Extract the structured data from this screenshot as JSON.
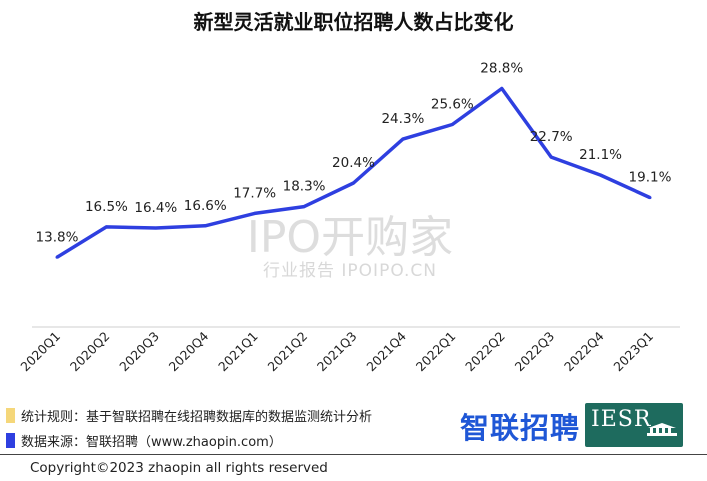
{
  "chart_data": {
    "type": "line",
    "title": "新型灵活就业职位招聘人数占比变化",
    "categories": [
      "2020Q1",
      "2020Q2",
      "2020Q3",
      "2020Q4",
      "2021Q1",
      "2021Q2",
      "2021Q3",
      "2021Q4",
      "2022Q1",
      "2022Q2",
      "2022Q3",
      "2022Q4",
      "2023Q1"
    ],
    "series": [
      {
        "values": [
          13.8,
          16.5,
          16.4,
          16.6,
          17.7,
          18.3,
          20.4,
          24.3,
          25.6,
          28.8,
          22.7,
          21.1,
          19.1
        ]
      }
    ],
    "data_labels": [
      "13.8%",
      "16.5%",
      "16.4%",
      "16.6%",
      "17.7%",
      "18.3%",
      "20.4%",
      "24.3%",
      "25.6%",
      "28.8%",
      "22.7%",
      "21.1%",
      "19.1%"
    ],
    "line_color": "#2e3fe0",
    "grid": false,
    "ylim": [
      10,
      30
    ]
  },
  "watermark": {
    "main": "IPO开购家",
    "sub": "行业报告 IPOIPO.CN"
  },
  "footnotes": [
    {
      "text": "统计规则：基于智联招聘在线招聘数据库的数据监测统计分析",
      "color": "#f5d77a"
    },
    {
      "text": "数据来源：智联招聘（www.zhaopin.com）",
      "color": "#2e3fe0"
    }
  ],
  "logos": {
    "zhaopin": "智联招聘",
    "iesr": "IESR"
  },
  "copyright": "Copyright©2023 zhaopin all rights reserved"
}
